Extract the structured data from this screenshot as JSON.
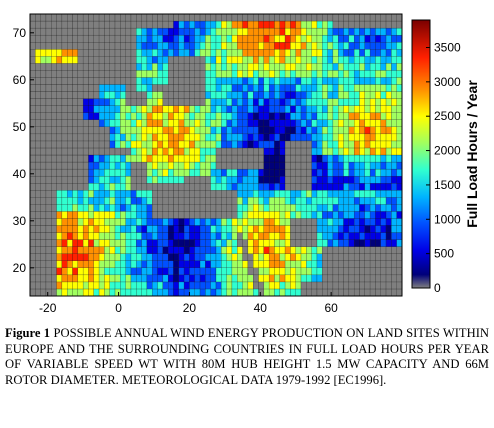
{
  "figure": {
    "colors": {
      "land_ramp": [
        "#00007a",
        "#0000e6",
        "#0050ff",
        "#00b4ff",
        "#30ffd0",
        "#a0ff60",
        "#ffff00",
        "#ff9000",
        "#ff2000",
        "#b40000",
        "#7a0000"
      ],
      "sea": "#7f7f7f",
      "grid": "#000000"
    },
    "chart_data": {
      "type": "heatmap",
      "title": "",
      "xlabel": "",
      "ylabel": "",
      "xlim": [
        -25,
        80
      ],
      "ylim": [
        14,
        74
      ],
      "xticks": [
        -20,
        0,
        20,
        40,
        60
      ],
      "yticks": [
        20,
        30,
        40,
        50,
        60,
        70
      ],
      "colorbar": {
        "label": "Full Load Hours / Year",
        "range": [
          0,
          3900
        ],
        "ticks": [
          0,
          500,
          1000,
          1500,
          2000,
          2500,
          3000,
          3500
        ]
      },
      "sea_value": 0
    }
  },
  "caption": {
    "label": "Figure 1",
    "text": " POSSIBLE ANNUAL WIND ENERGY PRODUCTION ON LAND SITES WITHIN EUROPE AND THE SURROUNDING COUNTRIES IN FULL LOAD HOURS PER YEAR OF VARIABLE SPEED WT WITH 80M HUB HEIGHT 1.5 MW CAPACITY AND 66M ROTOR DIAMETER. METEOROLOGICAL DATA 1979-1992 [EC1996]."
  }
}
